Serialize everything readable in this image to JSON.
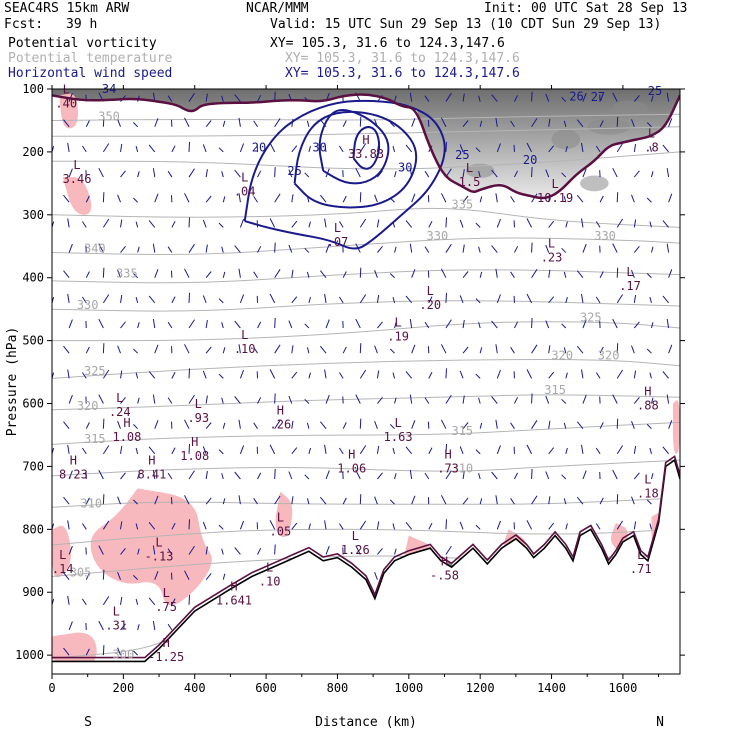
{
  "header": {
    "model": "SEAC4RS 15km ARW",
    "org": "NCAR/MMM",
    "init": "Init: 00 UTC Sat 28 Sep 13",
    "fcst_label": "Fcst:",
    "fcst_value": "39 h",
    "valid": "Valid: 15 UTC Sun 29 Sep 13 (10 CDT Sun 29 Sep 13)"
  },
  "fields": [
    {
      "name": "Potential vorticity",
      "xy": "XY= 105.3, 31.6 to 124.3,147.6",
      "color": "#000000"
    },
    {
      "name": "Potential temperature",
      "xy": "XY= 105.3, 31.6 to 124.3,147.6",
      "color": "#b0b0b0"
    },
    {
      "name": "Horizontal wind speed",
      "xy": "XY= 105.3, 31.6 to 124.3,147.6",
      "color": "#1a1a8c"
    }
  ],
  "chart_data": {
    "type": "cross-section",
    "xlabel": "Distance (km)",
    "ylabel": "Pressure (hPa)",
    "xlim": [
      0,
      1760
    ],
    "ylim": [
      1030,
      100
    ],
    "x_ticks": [
      0,
      200,
      400,
      600,
      800,
      1000,
      1200,
      1400,
      1600
    ],
    "y_ticks": [
      100,
      200,
      300,
      400,
      500,
      600,
      700,
      800,
      900,
      1000
    ],
    "end_labels": {
      "left": "S",
      "right": "N"
    },
    "wind_speed_contours": [
      {
        "value": 20,
        "points": [
          [
            540,
            310
          ],
          [
            560,
            235
          ],
          [
            620,
            175
          ],
          [
            700,
            140
          ],
          [
            800,
            120
          ],
          [
            900,
            118
          ],
          [
            1000,
            125
          ],
          [
            1080,
            150
          ],
          [
            1110,
            200
          ],
          [
            1060,
            260
          ],
          [
            980,
            300
          ],
          [
            900,
            340
          ],
          [
            850,
            358
          ],
          [
            780,
            340
          ],
          [
            680,
            330
          ],
          [
            600,
            320
          ],
          [
            540,
            310
          ]
        ]
      },
      {
        "value": 25,
        "points": [
          [
            680,
            250
          ],
          [
            690,
            200
          ],
          [
            730,
            155
          ],
          [
            800,
            135
          ],
          [
            900,
            138
          ],
          [
            980,
            160
          ],
          [
            1030,
            200
          ],
          [
            1000,
            255
          ],
          [
            920,
            285
          ],
          [
            820,
            290
          ],
          [
            730,
            280
          ],
          [
            680,
            250
          ]
        ]
      },
      {
        "value": 30,
        "points": [
          [
            760,
            230
          ],
          [
            745,
            185
          ],
          [
            775,
            140
          ],
          [
            820,
            130
          ],
          [
            900,
            150
          ],
          [
            950,
            185
          ],
          [
            930,
            230
          ],
          [
            880,
            250
          ],
          [
            820,
            250
          ],
          [
            760,
            230
          ]
        ]
      },
      {
        "value": 35,
        "points": [
          [
            845,
            210
          ],
          [
            850,
            175
          ],
          [
            880,
            158
          ],
          [
            910,
            165
          ],
          [
            920,
            195
          ],
          [
            900,
            225
          ],
          [
            870,
            228
          ],
          [
            845,
            210
          ]
        ]
      }
    ],
    "theta_contour_labels": [
      {
        "value": 350,
        "x": 160,
        "p": 150
      },
      {
        "value": 340,
        "x": 120,
        "p": 360
      },
      {
        "value": 335,
        "x": 210,
        "p": 400
      },
      {
        "value": 330,
        "x": 100,
        "p": 450
      },
      {
        "value": 325,
        "x": 120,
        "p": 555
      },
      {
        "value": 320,
        "x": 100,
        "p": 610
      },
      {
        "value": 315,
        "x": 120,
        "p": 663
      },
      {
        "value": 310,
        "x": 110,
        "p": 765
      },
      {
        "value": 305,
        "x": 80,
        "p": 875
      },
      {
        "value": 300,
        "x": 200,
        "p": 1005
      },
      {
        "value": 330,
        "x": 1080,
        "p": 340
      },
      {
        "value": 330,
        "x": 1550,
        "p": 340
      },
      {
        "value": 325,
        "x": 1510,
        "p": 470
      },
      {
        "value": 320,
        "x": 1430,
        "p": 530
      },
      {
        "value": 320,
        "x": 1560,
        "p": 530
      },
      {
        "value": 315,
        "x": 1410,
        "p": 585
      },
      {
        "value": 315,
        "x": 1150,
        "p": 650
      },
      {
        "value": 310,
        "x": 1150,
        "p": 710
      },
      {
        "value": 335,
        "x": 1150,
        "p": 290
      }
    ],
    "speed_labels": [
      {
        "value": 34,
        "x": 160,
        "p": 100
      },
      {
        "value": 20,
        "x": 580,
        "p": 193
      },
      {
        "value": 25,
        "x": 680,
        "p": 230
      },
      {
        "value": 30,
        "x": 750,
        "p": 193
      },
      {
        "value": 30,
        "x": 990,
        "p": 225
      },
      {
        "value": 25,
        "x": 1150,
        "p": 205
      },
      {
        "value": 20,
        "x": 1340,
        "p": 213
      },
      {
        "value": 26,
        "x": 1470,
        "p": 112
      },
      {
        "value": 27,
        "x": 1530,
        "p": 113
      },
      {
        "value": 25,
        "x": 1690,
        "p": 103
      }
    ],
    "pv_extrema": [
      {
        "type": "L",
        "value": "3.46",
        "x": 70,
        "p": 240
      },
      {
        "type": "H",
        "value": "33.83",
        "x": 880,
        "p": 200
      },
      {
        "type": "L",
        "value": ".04",
        "x": 540,
        "p": 260
      },
      {
        "type": "L",
        "value": ".07",
        "x": 800,
        "p": 340
      },
      {
        "type": "L",
        "value": "1.5",
        "x": 1170,
        "p": 245
      },
      {
        "type": "L",
        "value": "10.19",
        "x": 1410,
        "p": 270
      },
      {
        "type": "L",
        "value": ".23",
        "x": 1400,
        "p": 365
      },
      {
        "type": "L",
        "value": ".17",
        "x": 1620,
        "p": 410
      },
      {
        "type": "L",
        "value": ".20",
        "x": 1060,
        "p": 440
      },
      {
        "type": "L",
        "value": ".19",
        "x": 970,
        "p": 490
      },
      {
        "type": "L",
        "value": ".10",
        "x": 540,
        "p": 510
      },
      {
        "type": "H",
        "value": ".88",
        "x": 1670,
        "p": 600
      },
      {
        "type": "L",
        "value": ".24",
        "x": 190,
        "p": 610
      },
      {
        "type": "L",
        "value": ".93",
        "x": 410,
        "p": 620
      },
      {
        "type": "H",
        "value": ".26",
        "x": 640,
        "p": 630
      },
      {
        "type": "L",
        "value": "1.63",
        "x": 970,
        "p": 650
      },
      {
        "type": "H",
        "value": "1.08",
        "x": 210,
        "p": 650
      },
      {
        "type": "H",
        "value": "1.08",
        "x": 400,
        "p": 680
      },
      {
        "type": "H",
        "value": "8.41",
        "x": 280,
        "p": 710
      },
      {
        "type": "H",
        "value": "1.06",
        "x": 840,
        "p": 700
      },
      {
        "type": "H",
        "value": ".73",
        "x": 1110,
        "p": 700
      },
      {
        "type": "H",
        "value": "8.23",
        "x": 60,
        "p": 710
      },
      {
        "type": "L",
        "value": ".05",
        "x": 640,
        "p": 800
      },
      {
        "type": "L",
        "value": "1.26",
        "x": 850,
        "p": 830
      },
      {
        "type": "L",
        "value": "-.13",
        "x": 300,
        "p": 840
      },
      {
        "type": "L",
        "value": ".14",
        "x": 30,
        "p": 860
      },
      {
        "type": "H",
        "value": "-.58",
        "x": 1100,
        "p": 870
      },
      {
        "type": "L",
        "value": ".10",
        "x": 610,
        "p": 880
      },
      {
        "type": "H",
        "value": "1.641",
        "x": 510,
        "p": 910
      },
      {
        "type": "L",
        "value": ".75",
        "x": 320,
        "p": 920
      },
      {
        "type": "L",
        "value": ".31",
        "x": 180,
        "p": 950
      },
      {
        "type": "H",
        "value": "-1.25",
        "x": 320,
        "p": 1000
      },
      {
        "type": "L",
        "value": ".71",
        "x": 1650,
        "p": 860
      },
      {
        "type": "L",
        "value": ".18",
        "x": 1670,
        "p": 740
      },
      {
        "type": "L",
        "value": ".8",
        "x": 1680,
        "p": 190
      },
      {
        "type": "L",
        "value": ".40",
        "x": 40,
        "p": 120
      }
    ],
    "terrain_pressure": [
      [
        0,
        1010
      ],
      [
        150,
        1010
      ],
      [
        260,
        1010
      ],
      [
        300,
        990
      ],
      [
        400,
        930
      ],
      [
        500,
        895
      ],
      [
        560,
        875
      ],
      [
        620,
        860
      ],
      [
        680,
        845
      ],
      [
        720,
        835
      ],
      [
        760,
        850
      ],
      [
        800,
        845
      ],
      [
        840,
        860
      ],
      [
        880,
        880
      ],
      [
        905,
        910
      ],
      [
        930,
        870
      ],
      [
        960,
        850
      ],
      [
        1000,
        840
      ],
      [
        1030,
        835
      ],
      [
        1060,
        830
      ],
      [
        1090,
        850
      ],
      [
        1120,
        860
      ],
      [
        1150,
        845
      ],
      [
        1180,
        830
      ],
      [
        1220,
        855
      ],
      [
        1260,
        830
      ],
      [
        1300,
        815
      ],
      [
        1330,
        830
      ],
      [
        1350,
        845
      ],
      [
        1380,
        830
      ],
      [
        1410,
        810
      ],
      [
        1440,
        830
      ],
      [
        1460,
        850
      ],
      [
        1480,
        810
      ],
      [
        1510,
        800
      ],
      [
        1540,
        830
      ],
      [
        1560,
        855
      ],
      [
        1580,
        840
      ],
      [
        1600,
        820
      ],
      [
        1630,
        810
      ],
      [
        1650,
        840
      ],
      [
        1670,
        850
      ],
      [
        1700,
        790
      ],
      [
        1720,
        700
      ],
      [
        1745,
        690
      ],
      [
        1760,
        720
      ]
    ],
    "tropopause_2pvu": [
      [
        0,
        110
      ],
      [
        80,
        118
      ],
      [
        150,
        118
      ],
      [
        230,
        115
      ],
      [
        300,
        120
      ],
      [
        350,
        125
      ],
      [
        380,
        135
      ],
      [
        400,
        135
      ],
      [
        420,
        125
      ],
      [
        480,
        122
      ],
      [
        560,
        122
      ],
      [
        640,
        118
      ],
      [
        700,
        118
      ],
      [
        760,
        120
      ],
      [
        820,
        110
      ],
      [
        880,
        108
      ],
      [
        940,
        115
      ],
      [
        980,
        128
      ],
      [
        1020,
        130
      ],
      [
        1060,
        195
      ],
      [
        1100,
        240
      ],
      [
        1150,
        255
      ],
      [
        1180,
        265
      ],
      [
        1200,
        260
      ],
      [
        1260,
        250
      ],
      [
        1300,
        265
      ],
      [
        1340,
        270
      ],
      [
        1380,
        275
      ],
      [
        1420,
        265
      ],
      [
        1470,
        235
      ],
      [
        1520,
        215
      ],
      [
        1560,
        190
      ],
      [
        1600,
        185
      ],
      [
        1640,
        180
      ],
      [
        1680,
        175
      ],
      [
        1720,
        160
      ],
      [
        1760,
        110
      ]
    ]
  }
}
